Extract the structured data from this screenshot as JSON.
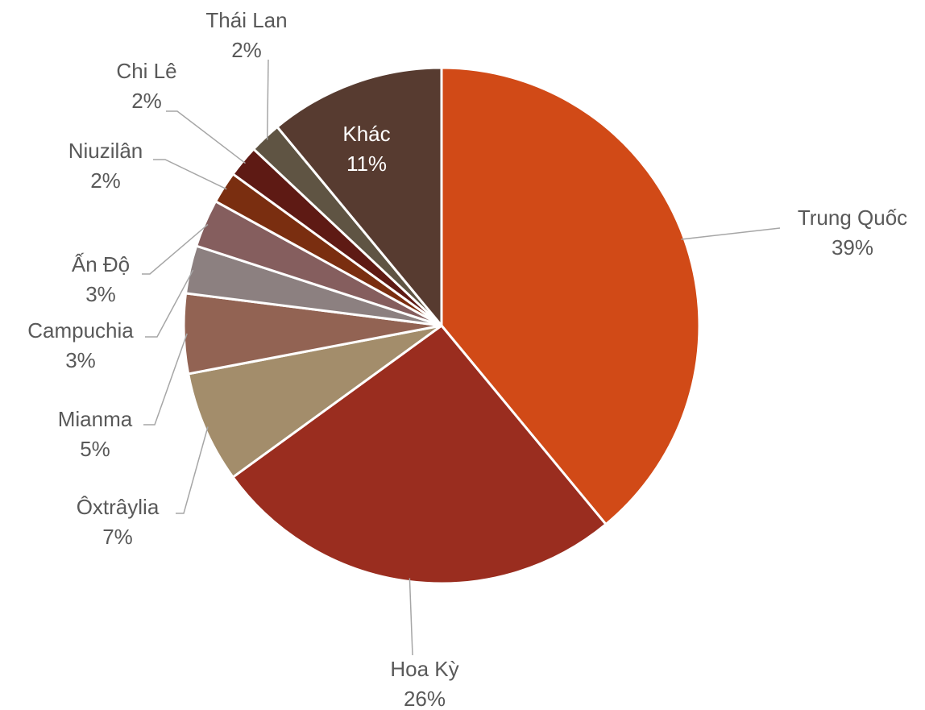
{
  "chart_data": {
    "type": "pie",
    "categories": [
      "Trung Quốc",
      "Hoa Kỳ",
      "Ôxtrâylia",
      "Mianma",
      "Campuchia",
      "Ấn Độ",
      "Niuzilân",
      "Chi Lê",
      "Thái Lan",
      "Khác"
    ],
    "values": [
      39,
      26,
      7,
      5,
      3,
      3,
      2,
      2,
      2,
      11
    ],
    "value_labels": [
      "39%",
      "26%",
      "7%",
      "5%",
      "3%",
      "3%",
      "2%",
      "2%",
      "2%",
      "11%"
    ],
    "colors": [
      "#d14a17",
      "#9a2d1f",
      "#a38d6b",
      "#926353",
      "#8c8080",
      "#855e5e",
      "#7a2e10",
      "#5e1a14",
      "#5f5443",
      "#573b30"
    ]
  }
}
